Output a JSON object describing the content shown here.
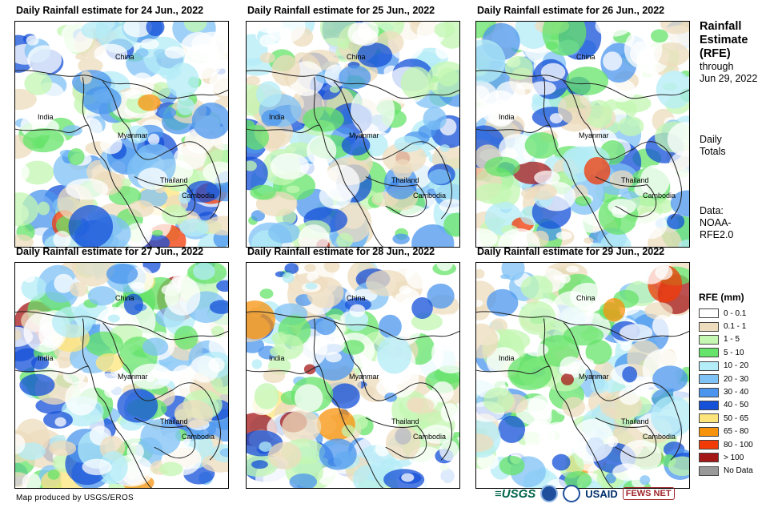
{
  "panels": [
    {
      "title": "Daily Rainfall estimate for 24 Jun., 2022",
      "seed": 24,
      "wet": 1.0,
      "labels": {
        "china": "China",
        "india": "India",
        "myanmar": "Myanmar",
        "thailand": "Thailand",
        "cambodia": "Cambodia"
      }
    },
    {
      "title": "Daily Rainfall estimate for 25 Jun., 2022",
      "seed": 25,
      "wet": 1.1,
      "labels": {
        "china": "China",
        "india": "India",
        "myanmar": "Myanmar",
        "thailand": "Thailand",
        "cambodia": "Cambodia"
      }
    },
    {
      "title": "Daily Rainfall estimate for 26 Jun., 2022",
      "seed": 26,
      "wet": 0.8,
      "labels": {
        "china": "China",
        "india": "India",
        "myanmar": "Myanmar",
        "thailand": "Thailand",
        "cambodia": "Cambodia"
      }
    },
    {
      "title": "Daily Rainfall estimate for 27 Jun., 2022",
      "seed": 27,
      "wet": 0.9,
      "labels": {
        "china": "China",
        "india": "India",
        "myanmar": "Myanmar",
        "thailand": "Thailand",
        "cambodia": "Cambodia"
      }
    },
    {
      "title": "Daily Rainfall estimate for 28 Jun., 2022",
      "seed": 28,
      "wet": 0.7,
      "labels": {
        "china": "China",
        "india": "India",
        "myanmar": "Myanmar",
        "thailand": "Thailand",
        "cambodia": "Cambodia"
      }
    },
    {
      "title": "Daily Rainfall estimate for 29 Jun., 2022",
      "seed": 29,
      "wet": 0.85,
      "labels": {
        "china": "China",
        "india": "India",
        "myanmar": "Myanmar",
        "thailand": "Thailand",
        "cambodia": "Cambodia"
      }
    }
  ],
  "sidebar": {
    "title_line1": "Rainfall",
    "title_line2": "Estimate",
    "title_line3": "(RFE)",
    "through": "through",
    "date": "Jun 29, 2022",
    "period_line1": "Daily",
    "period_line2": "Totals",
    "data_line1": "Data:",
    "data_line2": "NOAA-",
    "data_line3": "RFE2.0"
  },
  "legend": {
    "title": "RFE (mm)",
    "items": [
      {
        "label": "0 - 0.1",
        "color": "#ffffff"
      },
      {
        "label": "0.1 - 1",
        "color": "#eedcbe"
      },
      {
        "label": "1 - 5",
        "color": "#c3f7b2"
      },
      {
        "label": "5 - 10",
        "color": "#65e36a"
      },
      {
        "label": "10 - 20",
        "color": "#b4ecf7"
      },
      {
        "label": "20 - 30",
        "color": "#7fc2f5"
      },
      {
        "label": "30 - 40",
        "color": "#4b95ee"
      },
      {
        "label": "40 - 50",
        "color": "#1450d8"
      },
      {
        "label": "50 - 65",
        "color": "#fde57c"
      },
      {
        "label": "65 - 80",
        "color": "#f7930c"
      },
      {
        "label": "80 - 100",
        "color": "#f13a06"
      },
      {
        "label": "> 100",
        "color": "#a41717"
      },
      {
        "label": "No Data",
        "color": "#999999"
      }
    ]
  },
  "credit": "Map produced by USGS/EROS",
  "logos": {
    "usgs": "≡USGS",
    "usaid": "USAID",
    "fews": "FEWS NET"
  }
}
